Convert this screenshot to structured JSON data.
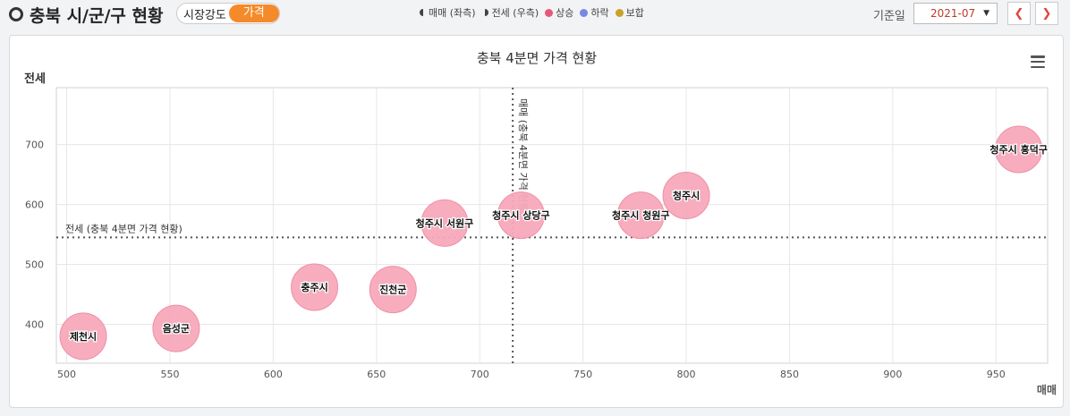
{
  "header": {
    "title": "충북 시/군/구 현황",
    "toggle_off": "시장강도",
    "toggle_on": "가격",
    "legend": {
      "trade": "매매 (좌측)",
      "jeonse": "전세 (우측)",
      "rise": "상승",
      "fall": "하락",
      "flat": "보합"
    },
    "base_label": "기준일",
    "date_value": "2021-07"
  },
  "colors": {
    "accent": "#f58a2a",
    "rise": "#e8577a",
    "fall": "#7b86e0",
    "flat": "#c9a227",
    "bubble": "#f7a9bb"
  },
  "chart_data": {
    "type": "scatter",
    "title": "충북 4분면 가격 현황",
    "xlabel": "매매",
    "ylabel": "전세",
    "xlim": [
      495,
      975
    ],
    "ylim": [
      335,
      795
    ],
    "x_ticks": [
      500,
      550,
      600,
      650,
      700,
      750,
      800,
      850,
      900,
      950
    ],
    "y_ticks": [
      400,
      500,
      600,
      700
    ],
    "ref_x": 716,
    "ref_y": 545,
    "ref_x_label": "매매 (충북 4분면 가격 현황)",
    "ref_y_label": "전세 (충북 4분면 가격 현황)",
    "grid": true,
    "points": [
      {
        "name": "제천시",
        "x": 508,
        "y": 380
      },
      {
        "name": "음성군",
        "x": 553,
        "y": 393
      },
      {
        "name": "충주시",
        "x": 620,
        "y": 462
      },
      {
        "name": "진천군",
        "x": 658,
        "y": 458
      },
      {
        "name": "청주시 서원구",
        "x": 683,
        "y": 569
      },
      {
        "name": "청주시 상당구",
        "x": 720,
        "y": 582
      },
      {
        "name": "청주시 청원구",
        "x": 778,
        "y": 582
      },
      {
        "name": "청주시",
        "x": 800,
        "y": 615
      },
      {
        "name": "청주시 흥덕구",
        "x": 961,
        "y": 692
      }
    ]
  }
}
